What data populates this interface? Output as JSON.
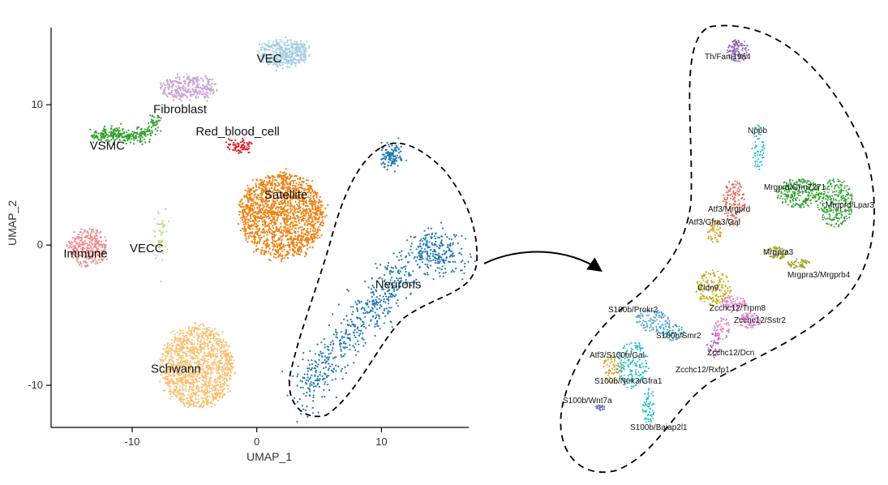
{
  "chart_data": [
    {
      "type": "scatter",
      "xlabel": "UMAP_1",
      "ylabel": "UMAP_2",
      "xticks": [
        -10,
        0,
        10
      ],
      "yticks": [
        -10,
        0,
        10
      ],
      "xlim": [
        -16.5,
        17
      ],
      "ylim": [
        -13,
        15.5
      ],
      "clusters": [
        {
          "name": "VEC",
          "color": "#a6cee3",
          "center": [
            2.2,
            13.7
          ],
          "spread": [
            2.0,
            0.9
          ],
          "n": 420
        },
        {
          "name": "Fibroblast",
          "color": "#c8a2d8",
          "center": [
            -5.5,
            11.2
          ],
          "spread": [
            2.3,
            0.8
          ],
          "n": 300
        },
        {
          "name": "VSMC",
          "color": "#33a02c",
          "center": [
            -10.5,
            7.7
          ],
          "spread": [
            2.2,
            0.5
          ],
          "n": 300
        },
        {
          "name": "Red_blood_cell",
          "color": "#e31a1c",
          "center": [
            -1.5,
            7.0
          ],
          "spread": [
            1.1,
            0.4
          ],
          "n": 70
        },
        {
          "name": "Satellite",
          "color": "#f07f0e",
          "center": [
            2.0,
            2.1
          ],
          "spread": [
            3.4,
            3.0
          ],
          "n": 1600
        },
        {
          "name": "Immune",
          "color": "#f08b8b",
          "center": [
            -13.5,
            -0.2
          ],
          "spread": [
            1.5,
            1.3
          ],
          "n": 300
        },
        {
          "name": "VECC",
          "color": "#b2df8a",
          "center": [
            -7.7,
            0.8
          ],
          "spread": [
            0.3,
            1.0
          ],
          "n": 60
        },
        {
          "name": "Schwann",
          "color": "#fbbf6f",
          "center": [
            -4.8,
            -8.7
          ],
          "spread": [
            2.9,
            2.9
          ],
          "n": 1300
        },
        {
          "name": "Neurons",
          "color": "#1f78b4",
          "center": [
            10.5,
            -3.5
          ],
          "spread": [
            5.0,
            5.0
          ],
          "n": 900
        }
      ],
      "labels": [
        {
          "text": "VEC",
          "x": 0.0,
          "y": 13.0
        },
        {
          "text": "Fibroblast",
          "x": -8.3,
          "y": 9.4
        },
        {
          "text": "Red_blood_cell",
          "x": -4.9,
          "y": 7.8
        },
        {
          "text": "VSMC",
          "x": -13.4,
          "y": 6.8
        },
        {
          "text": "Satellite",
          "x": 0.6,
          "y": 3.3
        },
        {
          "text": "Immune",
          "x": -15.5,
          "y": -0.9
        },
        {
          "text": "VECC",
          "x": -10.2,
          "y": -0.5
        },
        {
          "text": "Neurons",
          "x": 9.5,
          "y": -3.1
        },
        {
          "text": "Schwann",
          "x": -8.5,
          "y": -9.1
        }
      ]
    },
    {
      "type": "scatter",
      "title": "",
      "subclusters": [
        {
          "name": "Th/Fam19a4",
          "color": "#9467bd"
        },
        {
          "name": "Nppb",
          "color": "#17becf"
        },
        {
          "name": "Mrgprd/Grm7271",
          "color": "#2ca02c"
        },
        {
          "name": "Mrgprd/Lpar3",
          "color": "#2ca02c"
        },
        {
          "name": "Atf3/Mrgprd",
          "color": "#e8604c"
        },
        {
          "name": "Atf3/Gfra3/Gal",
          "color": "#d4a017"
        },
        {
          "name": "Mrgpra3",
          "color": "#9aa41e"
        },
        {
          "name": "Mrgpra3/Mrgprb4",
          "color": "#9aa41e"
        },
        {
          "name": "Cldn9",
          "color": "#c9a800"
        },
        {
          "name": "Zcchc12/Trpm8",
          "color": "#e377c2"
        },
        {
          "name": "Zcchc12/Sstr2",
          "color": "#e377c2"
        },
        {
          "name": "Zcchc12/Dcn",
          "color": "#b25fbf"
        },
        {
          "name": "Zcchc12/Rxfp1",
          "color": "#e377c2"
        },
        {
          "name": "S100b/Prokr2",
          "color": "#4fa6d8"
        },
        {
          "name": "S100b/Smr2",
          "color": "#2ca5b8"
        },
        {
          "name": "Atf3/S100b/Gal",
          "color": "#d4a017"
        },
        {
          "name": "S100b/Ntrk3/Gfra1",
          "color": "#17becf"
        },
        {
          "name": "S100b/Wnt7a",
          "color": "#6674c4"
        },
        {
          "name": "S100b/Baiap2l1",
          "color": "#17becf"
        }
      ]
    }
  ]
}
